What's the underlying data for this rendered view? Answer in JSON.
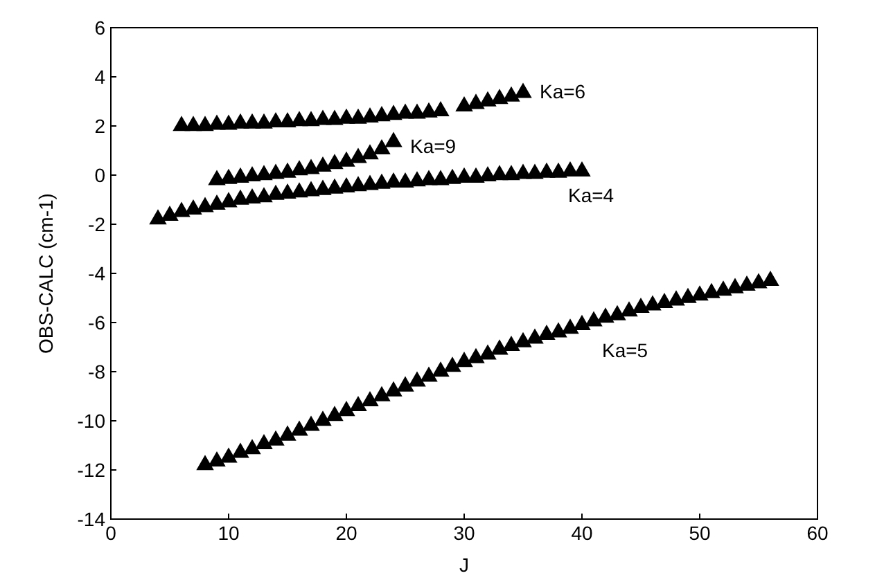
{
  "chart_data": {
    "type": "scatter",
    "xlabel": "J",
    "ylabel": "OBS-CALC (cm-1)",
    "xlim": [
      0,
      60
    ],
    "xticks": [
      0,
      10,
      20,
      30,
      40,
      50,
      60
    ],
    "ylim": [
      -14,
      6
    ],
    "yticks": [
      -14,
      -12,
      -10,
      -8,
      -6,
      -4,
      -2,
      0,
      2,
      4,
      6
    ],
    "grid": false,
    "marker": "triangle",
    "series": [
      {
        "name": "Ka=6",
        "color": "#000000",
        "x": [
          6,
          7,
          8,
          9,
          10,
          11,
          12,
          13,
          14,
          15,
          16,
          17,
          18,
          19,
          20,
          21,
          22,
          23,
          24,
          25,
          26,
          27,
          28,
          30,
          31,
          32,
          33,
          34,
          35
        ],
        "values": [
          2.0,
          2.0,
          2.0,
          2.05,
          2.05,
          2.1,
          2.1,
          2.1,
          2.15,
          2.15,
          2.2,
          2.2,
          2.25,
          2.25,
          2.3,
          2.3,
          2.35,
          2.4,
          2.45,
          2.5,
          2.5,
          2.55,
          2.6,
          2.8,
          2.9,
          3.0,
          3.1,
          3.2,
          3.35
        ]
      },
      {
        "name": "Ka=9",
        "color": "#000000",
        "x": [
          9,
          10,
          11,
          12,
          13,
          14,
          15,
          16,
          17,
          18,
          19,
          20,
          21,
          22,
          23,
          24
        ],
        "values": [
          -0.2,
          -0.15,
          -0.1,
          -0.05,
          0,
          0.05,
          0.1,
          0.2,
          0.25,
          0.35,
          0.45,
          0.55,
          0.7,
          0.85,
          1.05,
          1.35
        ]
      },
      {
        "name": "Ka=4",
        "color": "#000000",
        "x": [
          4,
          5,
          6,
          7,
          8,
          9,
          10,
          11,
          12,
          13,
          14,
          15,
          16,
          17,
          18,
          19,
          20,
          21,
          22,
          23,
          24,
          25,
          26,
          27,
          28,
          29,
          30,
          31,
          32,
          33,
          34,
          35,
          36,
          37,
          38,
          39,
          40
        ],
        "values": [
          -1.8,
          -1.65,
          -1.5,
          -1.4,
          -1.3,
          -1.2,
          -1.1,
          -1.0,
          -0.95,
          -0.9,
          -0.8,
          -0.75,
          -0.7,
          -0.65,
          -0.6,
          -0.55,
          -0.5,
          -0.45,
          -0.4,
          -0.35,
          -0.3,
          -0.3,
          -0.25,
          -0.2,
          -0.2,
          -0.15,
          -0.1,
          -0.1,
          -0.05,
          0,
          0,
          0.05,
          0.05,
          0.1,
          0.1,
          0.15,
          0.15
        ]
      },
      {
        "name": "Ka=5",
        "color": "#000000",
        "x": [
          8,
          9,
          10,
          11,
          12,
          13,
          14,
          15,
          16,
          17,
          18,
          19,
          20,
          21,
          22,
          23,
          24,
          25,
          26,
          27,
          28,
          29,
          30,
          31,
          32,
          33,
          34,
          35,
          36,
          37,
          38,
          39,
          40,
          41,
          42,
          43,
          44,
          45,
          46,
          47,
          48,
          49,
          50,
          51,
          52,
          53,
          54,
          55,
          56
        ],
        "values": [
          -11.8,
          -11.65,
          -11.5,
          -11.3,
          -11.15,
          -10.95,
          -10.8,
          -10.6,
          -10.4,
          -10.2,
          -10.0,
          -9.8,
          -9.6,
          -9.4,
          -9.2,
          -9.0,
          -8.8,
          -8.6,
          -8.4,
          -8.2,
          -8.0,
          -7.8,
          -7.6,
          -7.45,
          -7.3,
          -7.1,
          -6.95,
          -6.8,
          -6.65,
          -6.5,
          -6.4,
          -6.25,
          -6.1,
          -5.95,
          -5.8,
          -5.7,
          -5.55,
          -5.4,
          -5.3,
          -5.2,
          -5.1,
          -5.0,
          -4.9,
          -4.8,
          -4.7,
          -4.6,
          -4.5,
          -4.4,
          -4.3
        ]
      }
    ]
  }
}
